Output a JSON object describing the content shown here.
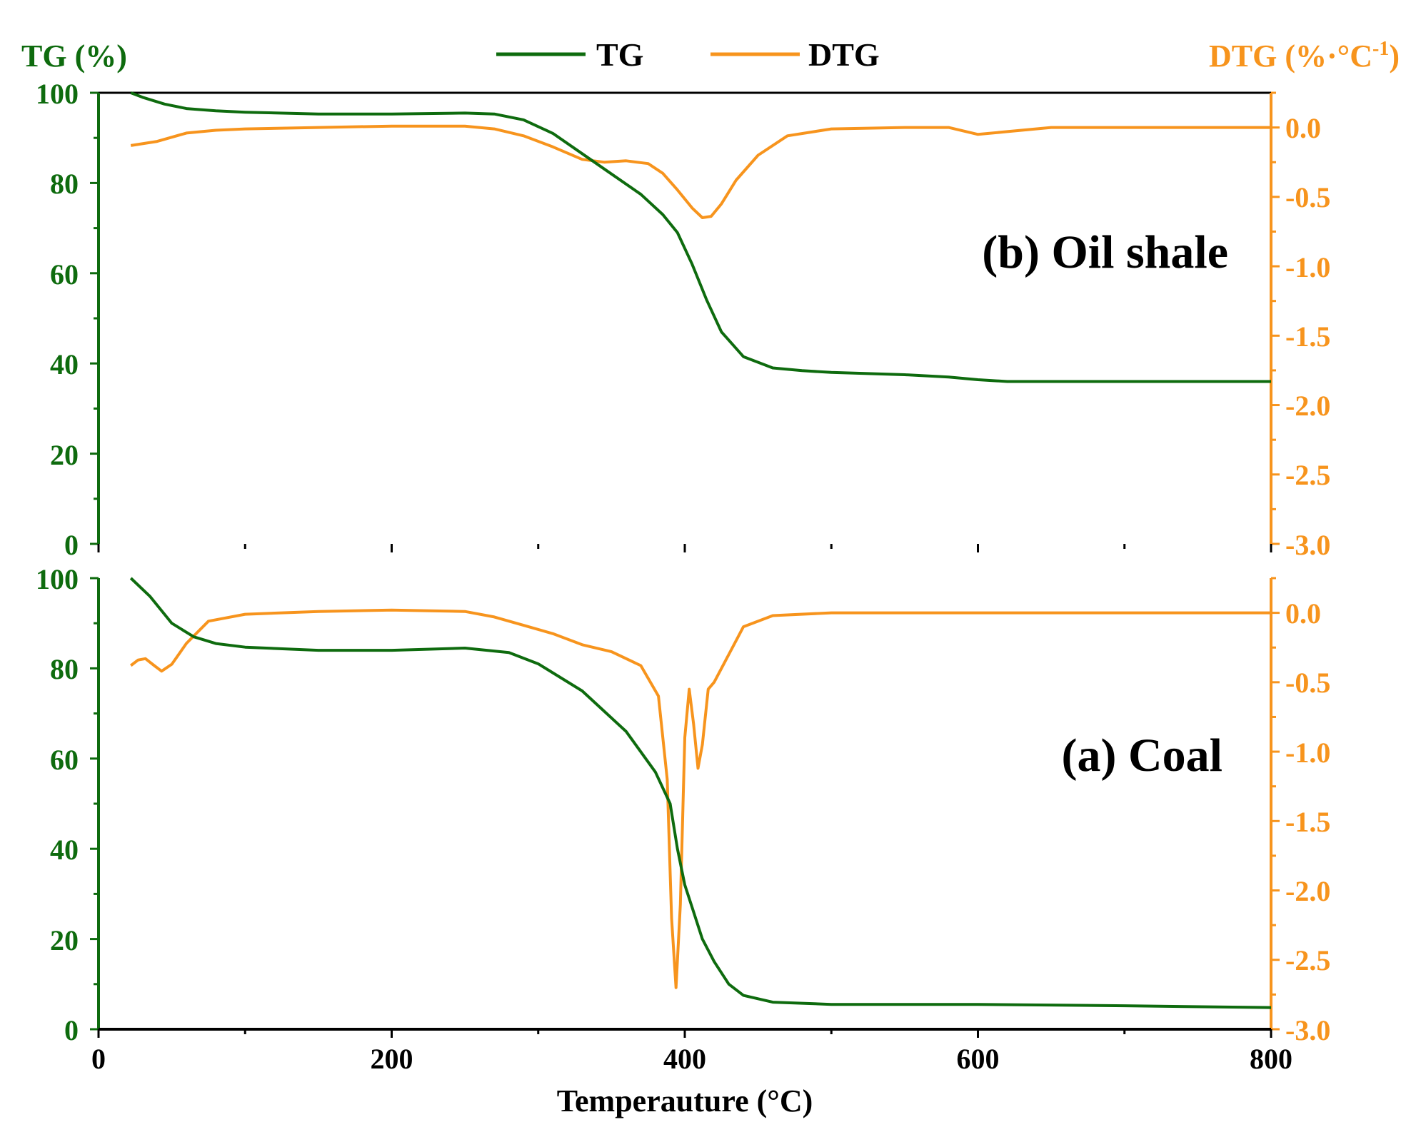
{
  "colors": {
    "tg": "#0e6b0e",
    "dtg": "#f7941d",
    "axis": "#000000"
  },
  "chart_data": {
    "type": "line",
    "xlabel": "Temperauture (°C)",
    "x_ticks": [
      "0",
      "200",
      "400",
      "600",
      "800"
    ],
    "xlim": [
      0,
      800
    ],
    "left_axis_title": "TG (%)",
    "right_axis_title": "DTG (%·°C",
    "right_axis_title_sup": "-1",
    "right_axis_title_close": ")",
    "legend": {
      "placement": "top-center",
      "entries": [
        "TG",
        "DTG"
      ]
    },
    "tg_ticks": [
      "0",
      "20",
      "40",
      "60",
      "80",
      "100"
    ],
    "tg_ylim": [
      0,
      100
    ],
    "dtg_ticks": [
      "-3.0",
      "-2.5",
      "-2.0",
      "-1.5",
      "-1.0",
      "-0.5",
      "0.0"
    ],
    "dtg_ylim": [
      -3.0,
      0.25
    ],
    "panels": [
      {
        "id": "oil-shale",
        "label": "(b) Oil shale",
        "position": "top",
        "tg": {
          "x": [
            22,
            30,
            45,
            60,
            80,
            100,
            150,
            200,
            250,
            270,
            290,
            310,
            330,
            350,
            370,
            385,
            395,
            405,
            415,
            425,
            440,
            460,
            480,
            500,
            550,
            580,
            600,
            620,
            650,
            700,
            750,
            800
          ],
          "y": [
            100,
            99,
            97.5,
            96.5,
            96,
            95.7,
            95.3,
            95.3,
            95.5,
            95.3,
            94,
            91,
            86.5,
            82,
            77.5,
            73,
            69,
            62,
            54,
            47,
            41.5,
            39,
            38.4,
            38,
            37.5,
            37,
            36.4,
            36,
            36,
            36,
            36,
            36
          ]
        },
        "dtg": {
          "x": [
            22,
            40,
            60,
            80,
            100,
            150,
            200,
            250,
            270,
            290,
            310,
            330,
            345,
            360,
            375,
            385,
            395,
            405,
            412,
            418,
            425,
            435,
            450,
            470,
            500,
            550,
            580,
            600,
            620,
            650,
            700,
            750,
            800
          ],
          "y": [
            -0.13,
            -0.1,
            -0.04,
            -0.02,
            -0.01,
            0.0,
            0.01,
            0.01,
            -0.01,
            -0.06,
            -0.14,
            -0.23,
            -0.25,
            -0.24,
            -0.26,
            -0.33,
            -0.45,
            -0.58,
            -0.65,
            -0.64,
            -0.55,
            -0.38,
            -0.2,
            -0.06,
            -0.01,
            0.0,
            0.0,
            -0.05,
            -0.03,
            0.0,
            0.0,
            0.0,
            0.0
          ]
        }
      },
      {
        "id": "coal",
        "label": "(a) Coal",
        "position": "bottom",
        "tg": {
          "x": [
            22,
            35,
            50,
            65,
            80,
            100,
            150,
            200,
            250,
            280,
            300,
            330,
            360,
            380,
            390,
            395,
            400,
            405,
            408,
            412,
            420,
            430,
            440,
            460,
            500,
            600,
            700,
            800
          ],
          "y": [
            100,
            96,
            90,
            87,
            85.5,
            84.7,
            84,
            84,
            84.5,
            83.5,
            81,
            75,
            66,
            57,
            50,
            40,
            32,
            27,
            24,
            20,
            15,
            10,
            7.5,
            6,
            5.5,
            5.5,
            5.2,
            4.8
          ]
        },
        "dtg": {
          "x": [
            22,
            27,
            32,
            38,
            43,
            50,
            60,
            75,
            100,
            150,
            200,
            250,
            270,
            290,
            310,
            330,
            350,
            370,
            382,
            388,
            391,
            394,
            397,
            400,
            403,
            406,
            409,
            412,
            416,
            420,
            430,
            440,
            460,
            500,
            600,
            700,
            800
          ],
          "y": [
            -0.38,
            -0.34,
            -0.33,
            -0.38,
            -0.42,
            -0.37,
            -0.22,
            -0.06,
            -0.01,
            0.01,
            0.02,
            0.01,
            -0.03,
            -0.09,
            -0.15,
            -0.23,
            -0.28,
            -0.38,
            -0.6,
            -1.2,
            -2.2,
            -2.7,
            -2.1,
            -0.9,
            -0.55,
            -0.8,
            -1.12,
            -0.95,
            -0.55,
            -0.5,
            -0.3,
            -0.1,
            -0.02,
            0.0,
            0.0,
            0.0,
            0.0
          ]
        }
      }
    ]
  }
}
